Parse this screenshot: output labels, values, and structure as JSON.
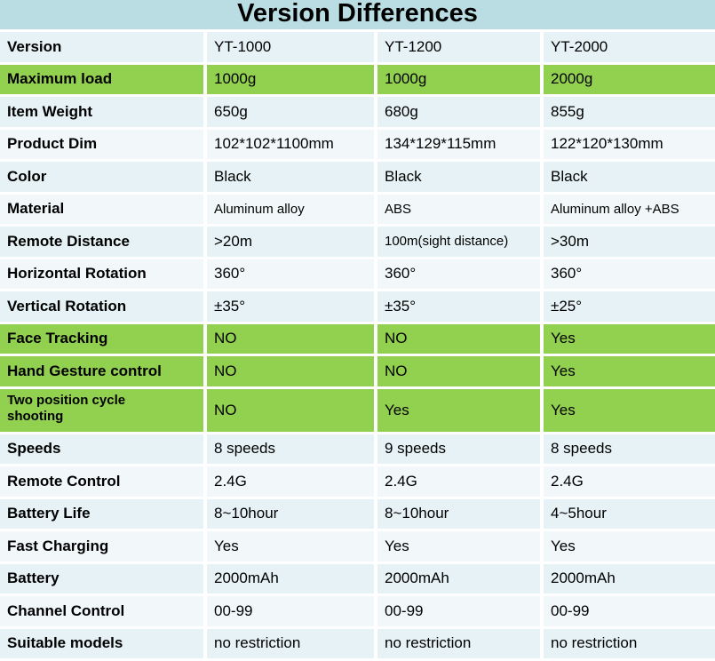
{
  "title": "Version Differences",
  "colors": {
    "title_band": "#b9dde2",
    "row_odd": "#e6f2f5",
    "row_even": "#f2f8fa",
    "highlight_green": "#92d050",
    "divider": "#ffffff",
    "text": "#000000"
  },
  "table": {
    "rows": [
      {
        "label": "Version",
        "values": [
          "YT-1000",
          "YT-1200",
          "YT-2000"
        ]
      },
      {
        "label": "Maximum load",
        "values": [
          "1000g",
          "1000g",
          "2000g"
        ],
        "green": true
      },
      {
        "label": "Item Weight",
        "values": [
          "650g",
          "680g",
          "855g"
        ]
      },
      {
        "label": "Product Dim",
        "values": [
          "102*102*1100mm",
          "134*129*115mm",
          "122*120*130mm"
        ]
      },
      {
        "label": "Color",
        "values": [
          "Black",
          "Black",
          "Black"
        ]
      },
      {
        "label": "Material",
        "values": [
          "Aluminum alloy",
          "ABS",
          "Aluminum alloy +ABS"
        ],
        "small_values": [
          0,
          1,
          2
        ]
      },
      {
        "label": "Remote Distance",
        "values": [
          ">20m",
          "100m(sight distance)",
          ">30m"
        ],
        "small_values": [
          1
        ]
      },
      {
        "label": "Horizontal Rotation",
        "values": [
          "360°",
          "360°",
          "360°"
        ]
      },
      {
        "label": "Vertical Rotation",
        "values": [
          "±35°",
          "±35°",
          "±25°"
        ]
      },
      {
        "label": "Face Tracking",
        "values": [
          "NO",
          "NO",
          "Yes"
        ],
        "green": true
      },
      {
        "label": "Hand Gesture control",
        "values": [
          "NO",
          "NO",
          "Yes"
        ],
        "green": true
      },
      {
        "label": "Two position cycle shooting",
        "values": [
          "NO",
          "Yes",
          "Yes"
        ],
        "green": true,
        "tall": true
      },
      {
        "label": "Speeds",
        "values": [
          "8 speeds",
          "9 speeds",
          "8 speeds"
        ]
      },
      {
        "label": "Remote Control",
        "values": [
          "2.4G",
          "2.4G",
          "2.4G"
        ]
      },
      {
        "label": "Battery Life",
        "values": [
          "8~10hour",
          "8~10hour",
          "4~5hour"
        ]
      },
      {
        "label": "Fast Charging",
        "values": [
          "Yes",
          "Yes",
          "Yes"
        ]
      },
      {
        "label": "Battery",
        "values": [
          "2000mAh",
          "2000mAh",
          "2000mAh"
        ]
      },
      {
        "label": "Channel Control",
        "values": [
          "00-99",
          "00-99",
          "00-99"
        ]
      },
      {
        "label": "Suitable models",
        "values": [
          "no restriction",
          "no restriction",
          "no restriction"
        ]
      }
    ]
  }
}
